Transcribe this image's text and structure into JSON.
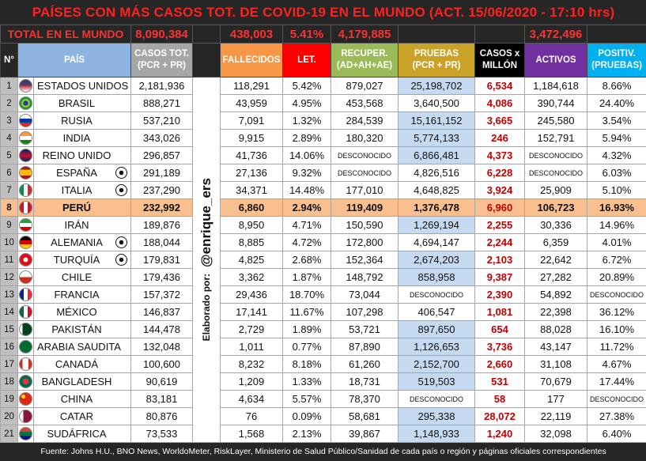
{
  "title": "PAÍSES CON MÁS CASOS TOT. DE COVID-19 EN EL MUNDO (ACT. 15/06/2020 - 17:10 hrs)",
  "totals": {
    "label": "TOTAL EN EL MUNDO",
    "casos": "8,090,384",
    "fallecidos": "438,003",
    "letalidad": "5.41%",
    "recuperados": "4,179,885",
    "activos": "3,472,496"
  },
  "header": {
    "n": "N°",
    "pais": "PAÍS",
    "casos": [
      "CASOS TOT.",
      "(PCR + PR)"
    ],
    "fallecidos": [
      "FALLECIDOS"
    ],
    "letalidad": [
      "LET."
    ],
    "recuperados": [
      "RECUPER.",
      "(AD+AH+AE)"
    ],
    "pruebas": [
      "PRUEBAS",
      "(PCR + PR)"
    ],
    "casos_millon": [
      "CASOS x",
      "MILLÓN"
    ],
    "activos": [
      "ACTIVOS"
    ],
    "positividad": [
      "POSITIV.",
      "(PRUEBAS)"
    ]
  },
  "credit": [
    "Elaborado por:",
    "@enrique_ers"
  ],
  "rows": [
    {
      "n": "1",
      "pais": "ESTADOS UNIDOS",
      "casos": "2,181,936",
      "fallecidos": "118,291",
      "letalidad": "5.42%",
      "recuperados": "879,027",
      "pruebas": "25,198,702",
      "casos_millon": "6,534",
      "activos": "1,184,618",
      "positividad": "8.66%",
      "pruebas_highlight": true
    },
    {
      "n": "2",
      "pais": "BRASIL",
      "casos": "888,271",
      "fallecidos": "43,959",
      "letalidad": "4.95%",
      "recuperados": "453,568",
      "pruebas": "3,640,500",
      "casos_millon": "4,086",
      "activos": "390,744",
      "positividad": "24.40%"
    },
    {
      "n": "3",
      "pais": "RUSIA",
      "casos": "537,210",
      "fallecidos": "7,091",
      "letalidad": "1.32%",
      "recuperados": "284,539",
      "pruebas": "15,161,152",
      "casos_millon": "3,665",
      "activos": "245,580",
      "positividad": "3.54%",
      "pruebas_highlight": true
    },
    {
      "n": "4",
      "pais": "INDIA",
      "casos": "343,026",
      "fallecidos": "9,915",
      "letalidad": "2.89%",
      "recuperados": "180,320",
      "pruebas": "5,774,133",
      "casos_millon": "246",
      "activos": "152,791",
      "positividad": "5.94%",
      "pruebas_highlight": true
    },
    {
      "n": "5",
      "pais": "REINO UNIDO",
      "casos": "296,857",
      "fallecidos": "41,736",
      "letalidad": "14.06%",
      "recuperados": "DESCONOCIDO",
      "pruebas": "6,866,481",
      "casos_millon": "4,373",
      "activos": "DESCONOCIDO",
      "positividad": "4.32%",
      "pruebas_highlight": true
    },
    {
      "n": "6",
      "pais": "ESPAÑA",
      "casos": "291,189",
      "fallecidos": "27,136",
      "letalidad": "9.32%",
      "recuperados": "DESCONOCIDO",
      "pruebas": "4,826,516",
      "casos_millon": "6,228",
      "activos": "DESCONOCIDO",
      "positividad": "6.03%",
      "ball": true
    },
    {
      "n": "7",
      "pais": "ITALIA",
      "casos": "237,290",
      "fallecidos": "34,371",
      "letalidad": "14.48%",
      "recuperados": "177,010",
      "pruebas": "4,648,825",
      "casos_millon": "3,924",
      "activos": "25,909",
      "positividad": "5.10%",
      "ball": true
    },
    {
      "n": "8",
      "pais": "PERÚ",
      "casos": "232,992",
      "fallecidos": "6,860",
      "letalidad": "2.94%",
      "recuperados": "119,409",
      "pruebas": "1,376,478",
      "casos_millon": "6,960",
      "activos": "106,723",
      "positividad": "16.93%",
      "row_highlight": true
    },
    {
      "n": "9",
      "pais": "IRÁN",
      "casos": "189,876",
      "fallecidos": "8,950",
      "letalidad": "4.71%",
      "recuperados": "150,590",
      "pruebas": "1,269,194",
      "casos_millon": "2,255",
      "activos": "30,336",
      "positividad": "14.96%",
      "pruebas_highlight": true
    },
    {
      "n": "10",
      "pais": "ALEMANIA",
      "casos": "188,044",
      "fallecidos": "8,885",
      "letalidad": "4.72%",
      "recuperados": "172,800",
      "pruebas": "4,694,147",
      "casos_millon": "2,244",
      "activos": "6,359",
      "positividad": "4.01%",
      "ball": true
    },
    {
      "n": "11",
      "pais": "TURQUÍA",
      "casos": "179,831",
      "fallecidos": "4,825",
      "letalidad": "2.68%",
      "recuperados": "152,364",
      "pruebas": "2,674,203",
      "casos_millon": "2,103",
      "activos": "22,642",
      "positividad": "6.72%",
      "ball": true,
      "pruebas_highlight": true
    },
    {
      "n": "12",
      "pais": "CHILE",
      "casos": "179,436",
      "fallecidos": "3,362",
      "letalidad": "1.87%",
      "recuperados": "148,792",
      "pruebas": "858,958",
      "casos_millon": "9,387",
      "activos": "27,282",
      "positividad": "20.89%",
      "pruebas_highlight": true
    },
    {
      "n": "13",
      "pais": "FRANCIA",
      "casos": "157,372",
      "fallecidos": "29,436",
      "letalidad": "18.70%",
      "recuperados": "73,044",
      "pruebas": "DESCONOCIDO",
      "casos_millon": "2,390",
      "activos": "54,892",
      "positividad": "DESCONOCIDO"
    },
    {
      "n": "14",
      "pais": "MÉXICO",
      "casos": "146,837",
      "fallecidos": "17,141",
      "letalidad": "11.67%",
      "recuperados": "107,298",
      "pruebas": "406,547",
      "casos_millon": "1,081",
      "activos": "22,398",
      "positividad": "36.12%"
    },
    {
      "n": "15",
      "pais": "PAKISTÁN",
      "casos": "144,478",
      "fallecidos": "2,729",
      "letalidad": "1.89%",
      "recuperados": "53,721",
      "pruebas": "897,650",
      "casos_millon": "654",
      "activos": "88,028",
      "positividad": "16.10%",
      "pruebas_highlight": true
    },
    {
      "n": "16",
      "pais": "ARABIA SAUDITA",
      "casos": "132,048",
      "fallecidos": "1,011",
      "letalidad": "0.77%",
      "recuperados": "87,890",
      "pruebas": "1,126,653",
      "casos_millon": "3,736",
      "activos": "43,147",
      "positividad": "11.72%",
      "pruebas_highlight": true
    },
    {
      "n": "17",
      "pais": "CANADÁ",
      "casos": "100,600",
      "fallecidos": "8,232",
      "letalidad": "8.18%",
      "recuperados": "61,260",
      "pruebas": "2,152,700",
      "casos_millon": "2,660",
      "activos": "31,108",
      "positividad": "4.67%",
      "pruebas_highlight": true
    },
    {
      "n": "18",
      "pais": "BANGLADESH",
      "casos": "90,619",
      "fallecidos": "1,209",
      "letalidad": "1.33%",
      "recuperados": "18,731",
      "pruebas": "519,503",
      "casos_millon": "531",
      "activos": "70,679",
      "positividad": "17.44%",
      "pruebas_highlight": true
    },
    {
      "n": "19",
      "pais": "CHINA",
      "casos": "83,181",
      "fallecidos": "4,634",
      "letalidad": "5.57%",
      "recuperados": "78,370",
      "pruebas": "DESCONOCIDO",
      "casos_millon": "58",
      "activos": "177",
      "positividad": "DESCONOCIDO"
    },
    {
      "n": "20",
      "pais": "CATAR",
      "casos": "80,876",
      "fallecidos": "76",
      "letalidad": "0.09%",
      "recuperados": "58,681",
      "pruebas": "295,338",
      "casos_millon": "28,072",
      "activos": "22,119",
      "positividad": "27.38%",
      "pruebas_highlight": true
    },
    {
      "n": "21",
      "pais": "SUDÁFRICA",
      "casos": "73,533",
      "fallecidos": "1,568",
      "letalidad": "2.13%",
      "recuperados": "39,867",
      "pruebas": "1,148,933",
      "casos_millon": "1,240",
      "activos": "32,098",
      "positividad": "6.40%",
      "pruebas_highlight": true
    }
  ],
  "footer": "Fuente: Johns H.U., BNO News, WorldoMeter, RiskLayer, Ministerio de Salud Público/Sanidad de cada país  o región y páginas oficiales correspondientes"
}
